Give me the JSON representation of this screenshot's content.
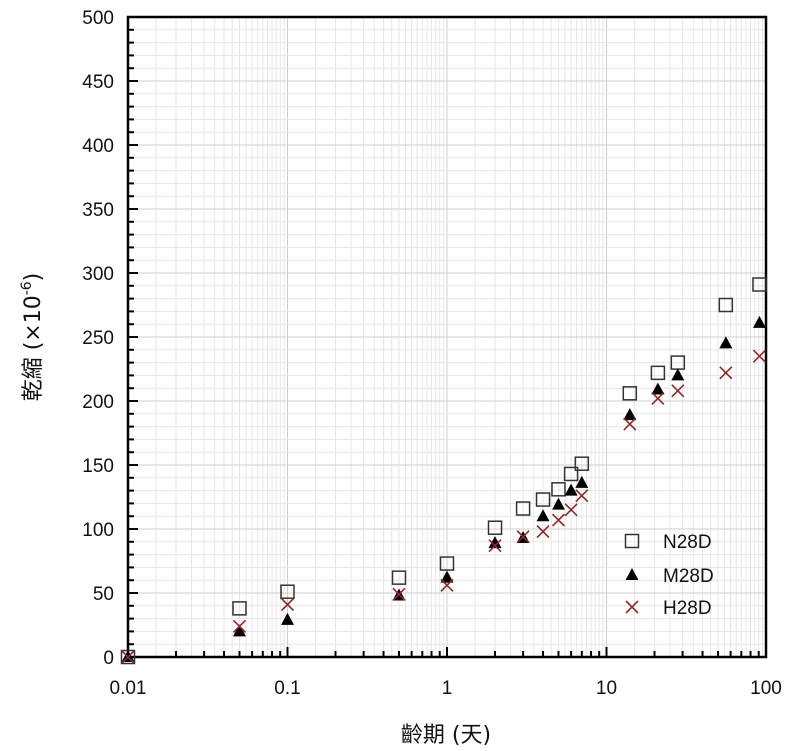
{
  "chart_data": {
    "type": "scatter",
    "xscale": "log",
    "xlim": [
      0.01,
      100
    ],
    "ylim": [
      0,
      500
    ],
    "grid": true,
    "legend_position": "lower-right",
    "xlabel": "齡期 (天)",
    "ylabel": "乾縮 (×10",
    "ylabel_sup": "-6",
    "ylabel_close": ")",
    "xticks": [
      {
        "value": 0.01,
        "label": "0.01"
      },
      {
        "value": 0.1,
        "label": "0.1"
      },
      {
        "value": 1,
        "label": "1"
      },
      {
        "value": 10,
        "label": "10"
      },
      {
        "value": 100,
        "label": "100"
      }
    ],
    "yticks": [
      {
        "value": 0,
        "label": "0"
      },
      {
        "value": 50,
        "label": "50"
      },
      {
        "value": 100,
        "label": "100"
      },
      {
        "value": 150,
        "label": "150"
      },
      {
        "value": 200,
        "label": "200"
      },
      {
        "value": 250,
        "label": "250"
      },
      {
        "value": 300,
        "label": "300"
      },
      {
        "value": 350,
        "label": "350"
      },
      {
        "value": 400,
        "label": "400"
      },
      {
        "value": 450,
        "label": "450"
      },
      {
        "value": 500,
        "label": "500"
      }
    ],
    "series": [
      {
        "name": "N28D",
        "marker": "square-open",
        "color": "#333333",
        "x": [
          0.01,
          0.05,
          0.1,
          0.5,
          1,
          2,
          3,
          4,
          5,
          6,
          7,
          14,
          21,
          28,
          56,
          91
        ],
        "y": [
          0,
          38,
          51,
          62,
          73,
          101,
          116,
          123,
          131,
          143,
          151,
          206,
          222,
          230,
          275,
          291
        ]
      },
      {
        "name": "M28D",
        "marker": "triangle-filled",
        "color": "#000000",
        "x": [
          0.01,
          0.05,
          0.1,
          0.5,
          1,
          2,
          3,
          4,
          5,
          6,
          7,
          14,
          21,
          28,
          56,
          91
        ],
        "y": [
          0,
          20,
          29,
          48,
          62,
          89,
          93,
          110,
          119,
          130,
          136,
          189,
          209,
          220,
          245,
          261
        ]
      },
      {
        "name": "H28D",
        "marker": "x",
        "color": "#8b2a2a",
        "x": [
          0.01,
          0.05,
          0.1,
          0.5,
          1,
          2,
          3,
          4,
          5,
          6,
          7,
          14,
          21,
          28,
          56,
          91
        ],
        "y": [
          0,
          24,
          41,
          49,
          56,
          87,
          94,
          98,
          107,
          115,
          126,
          182,
          202,
          208,
          222,
          235
        ]
      }
    ]
  }
}
